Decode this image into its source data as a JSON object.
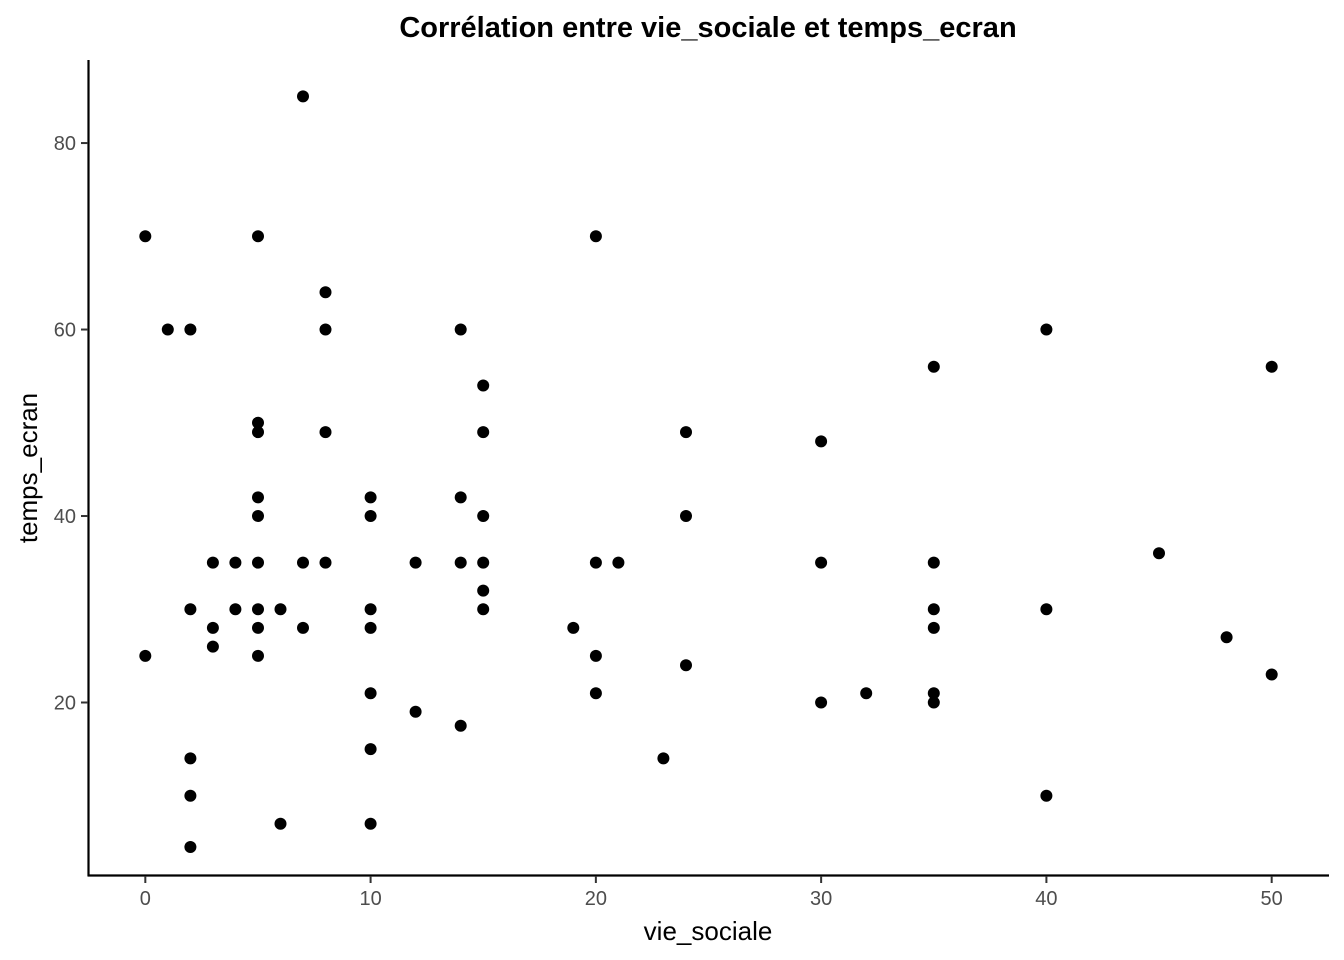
{
  "chart_data": {
    "type": "scatter",
    "title": "Corrélation entre vie_sociale et temps_ecran",
    "xlabel": "vie_sociale",
    "ylabel": "temps_ecran",
    "xlim": [
      -2.5,
      52.5
    ],
    "ylim": [
      1.5,
      88.8
    ],
    "xticks": [
      0,
      10,
      20,
      30,
      40,
      50
    ],
    "yticks": [
      20,
      40,
      60,
      80
    ],
    "grid": false,
    "legend": "none",
    "point_color": "#000000",
    "points": [
      [
        0,
        70
      ],
      [
        0,
        25
      ],
      [
        1,
        60
      ],
      [
        2,
        60
      ],
      [
        2,
        30
      ],
      [
        2,
        14
      ],
      [
        2,
        10
      ],
      [
        2,
        4.5
      ],
      [
        3,
        35
      ],
      [
        3,
        28
      ],
      [
        3,
        26
      ],
      [
        4,
        35
      ],
      [
        4,
        30
      ],
      [
        5,
        70
      ],
      [
        5,
        50
      ],
      [
        5,
        49
      ],
      [
        5,
        42
      ],
      [
        5,
        40
      ],
      [
        5,
        35
      ],
      [
        5,
        30
      ],
      [
        5,
        28
      ],
      [
        5,
        25
      ],
      [
        6,
        30
      ],
      [
        6,
        7
      ],
      [
        7,
        85
      ],
      [
        7,
        35
      ],
      [
        7,
        28
      ],
      [
        8,
        64
      ],
      [
        8,
        60
      ],
      [
        8,
        49
      ],
      [
        8,
        35
      ],
      [
        10,
        42
      ],
      [
        10,
        40
      ],
      [
        10,
        30
      ],
      [
        10,
        28
      ],
      [
        10,
        21
      ],
      [
        10,
        15
      ],
      [
        10,
        7
      ],
      [
        12,
        35
      ],
      [
        12,
        19
      ],
      [
        14,
        60
      ],
      [
        14,
        42
      ],
      [
        14,
        35
      ],
      [
        14,
        17.5
      ],
      [
        15,
        54
      ],
      [
        15,
        49
      ],
      [
        15,
        40
      ],
      [
        15,
        35
      ],
      [
        15,
        32
      ],
      [
        15,
        30
      ],
      [
        19,
        28
      ],
      [
        20,
        70
      ],
      [
        20,
        35
      ],
      [
        20,
        25
      ],
      [
        20,
        21
      ],
      [
        21,
        35
      ],
      [
        23,
        14
      ],
      [
        24,
        49
      ],
      [
        24,
        40
      ],
      [
        24,
        24
      ],
      [
        30,
        48
      ],
      [
        30,
        35
      ],
      [
        30,
        20
      ],
      [
        32,
        21
      ],
      [
        35,
        56
      ],
      [
        35,
        35
      ],
      [
        35,
        30
      ],
      [
        35,
        28
      ],
      [
        35,
        21
      ],
      [
        35,
        20
      ],
      [
        40,
        60
      ],
      [
        40,
        30
      ],
      [
        40,
        10
      ],
      [
        45,
        36
      ],
      [
        48,
        27
      ],
      [
        50,
        56
      ],
      [
        50,
        23
      ]
    ]
  }
}
